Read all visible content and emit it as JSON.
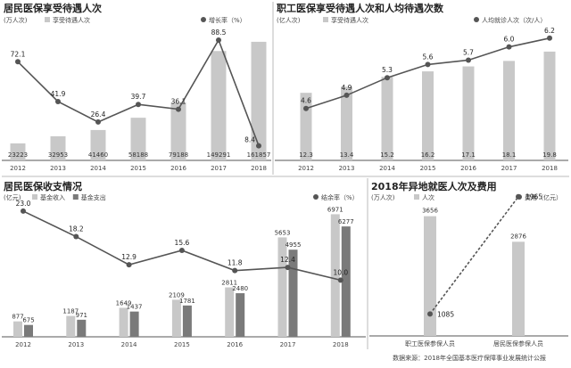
{
  "colors": {
    "bar_light": "#c8c8c8",
    "bar_dark": "#7a7a7a",
    "line": "#555555",
    "axis": "#555555"
  },
  "source": "数据来源：2018年全国基本医疗保障事业发展统计公报",
  "chart_data": [
    {
      "type": "bar",
      "title": "居民医保享受待遇人次",
      "unit": "(万人次)",
      "series": [
        {
          "name": "享受待遇人次",
          "values": [
            23223,
            32953,
            41460,
            58188,
            79188,
            149291,
            161857
          ]
        }
      ],
      "line_series": {
        "name": "增长率（%）",
        "values": [
          72.1,
          41.9,
          26.4,
          39.7,
          36.1,
          88.5,
          8.4
        ],
        "labels": [
          "72.1",
          "41.9",
          "26.4",
          "39.7",
          "36.1",
          "88.5",
          "8.4"
        ]
      },
      "categories": [
        "2012",
        "2013",
        "2014",
        "2015",
        "2016",
        "2017",
        "2018"
      ],
      "bar_labels": [
        "23223",
        "32953",
        "41460",
        "58188",
        "79188",
        "149291",
        "161857"
      ],
      "ylim": [
        0,
        180000
      ],
      "y2lim": [
        0,
        100
      ],
      "grid": false,
      "legend": "top-right"
    },
    {
      "type": "bar",
      "title": "职工医保享受待遇人次和人均待遇次数",
      "unit": "(亿人次)",
      "series": [
        {
          "name": "享受待遇人次",
          "values": [
            12.3,
            13.4,
            15.2,
            16.2,
            17.1,
            18.1,
            19.8
          ]
        }
      ],
      "line_series": {
        "name": "人均就诊人次（次/人）",
        "values": [
          4.6,
          4.9,
          5.3,
          5.6,
          5.7,
          6.0,
          6.2
        ],
        "labels": [
          "4.6",
          "4.9",
          "5.3",
          "5.6",
          "5.7",
          "6.0",
          "6.2"
        ]
      },
      "categories": [
        "2012",
        "2013",
        "2014",
        "2015",
        "2016",
        "2017",
        "2018"
      ],
      "bar_labels": [
        "12.3",
        "13.4",
        "15.2",
        "16.2",
        "17.1",
        "18.1",
        "19.8"
      ],
      "ylim": [
        0,
        24
      ],
      "y2lim": [
        3.5,
        6.5
      ],
      "grid": false,
      "legend": "top-right"
    },
    {
      "type": "bar",
      "title": "居民医保收支情况",
      "unit": "(亿元)",
      "series": [
        {
          "name": "基金收入",
          "values": [
            877,
            1187,
            1649,
            2109,
            2811,
            5653,
            6971
          ]
        },
        {
          "name": "基金支出",
          "values": [
            675,
            971,
            1437,
            1781,
            2480,
            4955,
            6277
          ]
        }
      ],
      "line_series": {
        "name": "结余率（%）",
        "values": [
          23.0,
          18.2,
          12.9,
          15.6,
          11.8,
          12.4,
          10.0
        ],
        "labels": [
          "23.0",
          "18.2",
          "12.9",
          "15.6",
          "11.8",
          "12.4",
          "10.0"
        ]
      },
      "categories": [
        "2012",
        "2013",
        "2014",
        "2015",
        "2016",
        "2017",
        "2018"
      ],
      "bar_labels": [
        [
          "877",
          "1187",
          "1649",
          "2109",
          "2811",
          "5653",
          "6971"
        ],
        [
          "675",
          "971",
          "1437",
          "1781",
          "2480",
          "4955",
          "6277"
        ]
      ],
      "ylim": [
        0,
        7500
      ],
      "y2lim": [
        0,
        25
      ],
      "grid": false,
      "legend": "top"
    },
    {
      "type": "bar",
      "title": "2018年异地就医人次及费用",
      "unit": "(万人次)",
      "series": [
        {
          "name": "人次",
          "values": [
            3656,
            2876
          ]
        }
      ],
      "line_series": {
        "name": "费用（亿元）",
        "values": [
          1085,
          1965
        ],
        "labels": [
          "1085",
          "1965"
        ]
      },
      "categories": [
        "职工医保参保人员",
        "居民医保参保人员"
      ],
      "bar_labels": [
        "3656",
        "2876"
      ],
      "ylim": [
        0,
        4000
      ],
      "y2lim": [
        900,
        2050
      ],
      "grid": false,
      "legend": "top"
    }
  ]
}
